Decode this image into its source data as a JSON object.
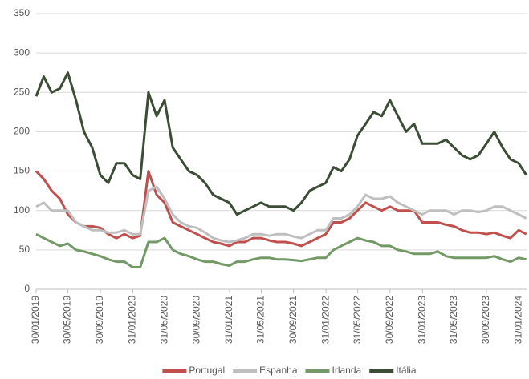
{
  "chart_data": {
    "type": "line",
    "x": [
      "30/01/2019",
      "28/02/2019",
      "30/03/2019",
      "30/04/2019",
      "30/05/2019",
      "30/06/2019",
      "30/07/2019",
      "30/08/2019",
      "30/09/2019",
      "30/10/2019",
      "30/11/2019",
      "30/12/2019",
      "30/01/2020",
      "28/02/2020",
      "30/03/2020",
      "30/04/2020",
      "30/05/2020",
      "30/06/2020",
      "30/07/2020",
      "30/08/2020",
      "30/09/2020",
      "30/10/2020",
      "30/11/2020",
      "30/12/2020",
      "30/01/2021",
      "28/02/2021",
      "30/03/2021",
      "30/04/2021",
      "30/05/2021",
      "30/06/2021",
      "30/07/2021",
      "30/08/2021",
      "30/09/2021",
      "30/10/2021",
      "30/11/2021",
      "30/12/2021",
      "30/01/2022",
      "28/02/2022",
      "30/03/2022",
      "30/04/2022",
      "30/05/2022",
      "30/06/2022",
      "30/07/2022",
      "30/08/2022",
      "30/09/2022",
      "30/10/2022",
      "30/11/2022",
      "30/12/2022",
      "30/01/2023",
      "28/02/2023",
      "30/03/2023",
      "30/04/2023",
      "30/05/2023",
      "30/06/2023",
      "30/07/2023",
      "30/08/2023",
      "30/09/2023",
      "30/10/2023",
      "30/11/2023",
      "30/12/2023",
      "30/01/2024",
      "28/02/2024"
    ],
    "series": [
      {
        "name": "Portugal",
        "color": "#c0504d",
        "values": [
          150,
          140,
          125,
          115,
          95,
          85,
          80,
          80,
          78,
          70,
          65,
          70,
          65,
          68,
          150,
          120,
          110,
          85,
          80,
          75,
          70,
          65,
          60,
          58,
          55,
          60,
          60,
          65,
          65,
          62,
          60,
          60,
          58,
          55,
          60,
          65,
          70,
          85,
          85,
          90,
          100,
          110,
          105,
          100,
          105,
          100,
          100,
          100,
          85,
          85,
          85,
          82,
          80,
          75,
          72,
          72,
          70,
          72,
          68,
          65,
          75,
          70
        ]
      },
      {
        "name": "Espanha",
        "color": "#bfbfbf",
        "values": [
          105,
          110,
          100,
          100,
          100,
          85,
          80,
          75,
          75,
          72,
          72,
          75,
          70,
          70,
          125,
          130,
          115,
          95,
          85,
          80,
          78,
          72,
          65,
          62,
          60,
          62,
          65,
          70,
          70,
          68,
          70,
          70,
          67,
          65,
          70,
          75,
          75,
          90,
          90,
          95,
          105,
          120,
          115,
          115,
          118,
          110,
          105,
          100,
          95,
          100,
          100,
          100,
          95,
          100,
          100,
          98,
          100,
          105,
          105,
          100,
          95,
          90
        ]
      },
      {
        "name": "Irlanda",
        "color": "#739966",
        "values": [
          70,
          65,
          60,
          55,
          58,
          50,
          48,
          45,
          42,
          38,
          35,
          35,
          28,
          28,
          60,
          60,
          65,
          50,
          45,
          42,
          38,
          35,
          35,
          32,
          30,
          35,
          35,
          38,
          40,
          40,
          38,
          38,
          37,
          36,
          38,
          40,
          40,
          50,
          55,
          60,
          65,
          62,
          60,
          55,
          55,
          50,
          48,
          45,
          45,
          45,
          48,
          42,
          40,
          40,
          40,
          40,
          40,
          42,
          38,
          35,
          40,
          38
        ]
      },
      {
        "name": "Itália",
        "color": "#3b4d34",
        "values": [
          245,
          270,
          250,
          255,
          275,
          240,
          200,
          180,
          145,
          135,
          160,
          160,
          145,
          140,
          250,
          220,
          240,
          180,
          165,
          150,
          145,
          135,
          120,
          115,
          110,
          95,
          100,
          105,
          110,
          105,
          105,
          105,
          100,
          110,
          125,
          130,
          135,
          155,
          150,
          165,
          195,
          210,
          225,
          220,
          240,
          220,
          200,
          210,
          185,
          185,
          185,
          190,
          180,
          170,
          165,
          170,
          185,
          200,
          180,
          165,
          160,
          145
        ]
      }
    ],
    "xlim": [
      "30/01/2019",
      "29/02/2024"
    ],
    "xticks": [
      "30/01/2019",
      "30/05/2019",
      "30/09/2019",
      "31/01/2020",
      "31/05/2020",
      "30/09/2020",
      "31/01/2021",
      "31/05/2021",
      "30/09/2021",
      "31/01/2022",
      "31/05/2022",
      "30/09/2022",
      "31/01/2023",
      "31/05/2023",
      "30/09/2023",
      "31/01/2024"
    ],
    "ylim": [
      0,
      350
    ],
    "yticks": [
      0,
      50,
      100,
      150,
      200,
      250,
      300,
      350
    ],
    "grid": true,
    "legend": "bottom"
  }
}
